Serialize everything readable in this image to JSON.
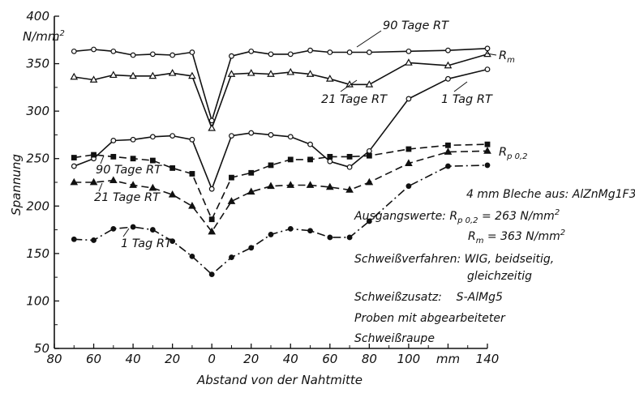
{
  "chart_data": {
    "type": "line",
    "ylabel": "Spannung",
    "yunit": "N/mm²",
    "xlabel": "Abstand von der Nahtmitte",
    "xunit": "mm",
    "xlim": [
      -80,
      140
    ],
    "ylim": [
      50,
      400
    ],
    "x_tick_labels": [
      "80",
      "60",
      "40",
      "20",
      "0",
      "20",
      "40",
      "60",
      "80",
      "100",
      "mm",
      "140"
    ],
    "y_tick_labels": [
      "50",
      "100",
      "150",
      "200",
      "250",
      "300",
      "350",
      "400"
    ],
    "series": [
      {
        "name": "90 Tage RT",
        "group": "Rm",
        "line": "solid",
        "marker": "circle-open",
        "points": [
          [
            -70,
            363
          ],
          [
            -60,
            365
          ],
          [
            -50,
            363
          ],
          [
            -40,
            359
          ],
          [
            -30,
            360
          ],
          [
            -20,
            359
          ],
          [
            -10,
            362
          ],
          [
            0,
            290
          ],
          [
            10,
            358
          ],
          [
            20,
            363
          ],
          [
            30,
            360
          ],
          [
            40,
            360
          ],
          [
            50,
            364
          ],
          [
            60,
            362
          ],
          [
            70,
            362
          ],
          [
            80,
            362
          ],
          [
            100,
            363
          ],
          [
            120,
            364
          ],
          [
            140,
            366
          ]
        ]
      },
      {
        "name": "21 Tage RT",
        "group": "Rm",
        "line": "solid",
        "marker": "triangle-open",
        "points": [
          [
            -70,
            336
          ],
          [
            -60,
            333
          ],
          [
            -50,
            338
          ],
          [
            -40,
            337
          ],
          [
            -30,
            337
          ],
          [
            -20,
            340
          ],
          [
            -10,
            337
          ],
          [
            0,
            282
          ],
          [
            10,
            339
          ],
          [
            20,
            340
          ],
          [
            30,
            339
          ],
          [
            40,
            341
          ],
          [
            50,
            339
          ],
          [
            60,
            334
          ],
          [
            70,
            328
          ],
          [
            80,
            328
          ],
          [
            100,
            351
          ],
          [
            120,
            348
          ],
          [
            140,
            360
          ]
        ]
      },
      {
        "name": "1 Tag RT",
        "group": "Rm",
        "line": "solid",
        "marker": "circle-open",
        "points": [
          [
            -70,
            242
          ],
          [
            -60,
            250
          ],
          [
            -50,
            269
          ],
          [
            -40,
            270
          ],
          [
            -30,
            273
          ],
          [
            -20,
            274
          ],
          [
            -10,
            270
          ],
          [
            0,
            218
          ],
          [
            10,
            274
          ],
          [
            20,
            277
          ],
          [
            30,
            275
          ],
          [
            40,
            273
          ],
          [
            50,
            265
          ],
          [
            60,
            247
          ],
          [
            70,
            241
          ],
          [
            80,
            258
          ],
          [
            100,
            313
          ],
          [
            120,
            334
          ],
          [
            140,
            344
          ]
        ]
      },
      {
        "name": "90 Tage RT",
        "group": "Rp0,2",
        "line": "dashed",
        "marker": "square-filled",
        "points": [
          [
            -70,
            251
          ],
          [
            -60,
            254
          ],
          [
            -50,
            252
          ],
          [
            -40,
            250
          ],
          [
            -30,
            248
          ],
          [
            -20,
            240
          ],
          [
            -10,
            234
          ],
          [
            0,
            186
          ],
          [
            10,
            230
          ],
          [
            20,
            235
          ],
          [
            30,
            243
          ],
          [
            40,
            249
          ],
          [
            50,
            249
          ],
          [
            60,
            252
          ],
          [
            70,
            252
          ],
          [
            80,
            253
          ],
          [
            100,
            260
          ],
          [
            120,
            264
          ],
          [
            140,
            265
          ]
        ]
      },
      {
        "name": "21 Tage RT",
        "group": "Rp0,2",
        "line": "dashed",
        "marker": "triangle-filled",
        "points": [
          [
            -70,
            225
          ],
          [
            -60,
            225
          ],
          [
            -50,
            227
          ],
          [
            -40,
            222
          ],
          [
            -30,
            219
          ],
          [
            -20,
            212
          ],
          [
            -10,
            200
          ],
          [
            0,
            173
          ],
          [
            10,
            205
          ],
          [
            20,
            215
          ],
          [
            30,
            221
          ],
          [
            40,
            222
          ],
          [
            50,
            222
          ],
          [
            60,
            220
          ],
          [
            70,
            217
          ],
          [
            80,
            225
          ],
          [
            100,
            245
          ],
          [
            120,
            257
          ],
          [
            140,
            258
          ]
        ]
      },
      {
        "name": "1 Tag RT",
        "group": "Rp0,2",
        "line": "dashdot",
        "marker": "circle-filled",
        "points": [
          [
            -70,
            165
          ],
          [
            -60,
            164
          ],
          [
            -50,
            176
          ],
          [
            -40,
            178
          ],
          [
            -30,
            175
          ],
          [
            -20,
            163
          ],
          [
            -10,
            147
          ],
          [
            0,
            128
          ],
          [
            10,
            146
          ],
          [
            20,
            156
          ],
          [
            30,
            170
          ],
          [
            40,
            176
          ],
          [
            50,
            174
          ],
          [
            60,
            167
          ],
          [
            70,
            167
          ],
          [
            80,
            184
          ],
          [
            100,
            221
          ],
          [
            120,
            242
          ],
          [
            140,
            243
          ]
        ]
      }
    ]
  },
  "annotations": {
    "rm_90": "90 Tage RT",
    "rm_21": "21 Tage RT",
    "rm_1": "1 Tag RT",
    "rm_label": "R",
    "rm_sub": "m",
    "rp_90": "90 Tage RT",
    "rp_21": "21 Tage RT",
    "rp_1": "1 Tag RT",
    "rp_label": "R",
    "rp_sub": "p 0,2",
    "y_unit": "N/mm",
    "y_unit_sup": "2"
  },
  "info": {
    "line1": "4 mm Bleche aus: AlZnMg1F32",
    "line2_prefix": "Ausgangswerte: ",
    "line2_sym": "R",
    "line2_sub": "p 0,2",
    "line2_val": " = 263 N/mm",
    "line2_sup": "2",
    "line3_sym": "R",
    "line3_sub": "m",
    "line3_val": " = 363 N/mm",
    "line3_sup": "2",
    "line4": "Schweißverfahren: WIG, beidseitig,",
    "line5": "gleichzeitig",
    "line6": "Schweißzusatz:    S-AlMg5",
    "line7": "Proben mit abgearbeiteter",
    "line8": "Schweißraupe"
  }
}
